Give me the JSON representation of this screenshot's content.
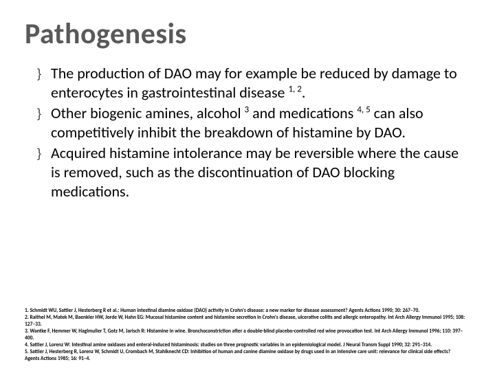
{
  "slide": {
    "title": "Pathogenesis",
    "title_color": "#595959",
    "title_fontsize": 42,
    "background_color": "#ffffff",
    "body_fontsize": 22,
    "body_color": "#000000",
    "bullet_marker": "}",
    "bullets": [
      {
        "html": "The production of DAO may for example be reduced by damage to enterocytes in gastrointestinal disease <sup>1, 2</sup>."
      },
      {
        "html": "Other biogenic amines, alcohol <sup>3</sup> and medications <sup>4, 5</sup> can also competitively inhibit the breakdown of histamine by DAO."
      },
      {
        "html": "Acquired histamine intolerance may be reversible where the cause is removed, such as the discontinuation of DAO blocking medications."
      }
    ],
    "references": [
      "1. Schmidt WU, Sattler J, Hesterberg R et al.: Human intestinal diamine oxidase (DAO) activity in Crohn's disease: a new marker for disease assessment? Agents Actions 1990; 30: 267–70.",
      "2. Raithel M, Matek M, Baenkler HW, Jorde W, Hahn EG: Mucosal histamine content and histamine secretion in Crohn's disease, ulcerative colitis and allergic enteropathy. Int Arch Allergy Immunol 1995; 108: 127–33.",
      "3. Wantke F, Hemmer W, Haglmuller T, Gotz M, Jarisch R: Histamine in wine. Bronchoconstriction after a double-blind placebo-controlled red wine provocation test. Int Arch Allergy Immunol 1996; 110: 397–400.",
      "4. Sattler J, Lorenz W: Intestinal amine oxidases and enteral-induced histaminosis: studies on three prognostic variables in an epidemiological model. J Neural Transm Suppl 1990; 32: 291–314.",
      "5. Sattler J, Hesterberg R, Lorenz W, Schmidt U, Crombach M, Stahlknecht CD: Inhibition of human and canine diamine oxidase by drugs used in an intensive care unit: relevance for clinical side effects? Agents Actions 1985; 16: 91–4."
    ],
    "ref_fontsize": 7.5,
    "ref_color": "#000000"
  }
}
